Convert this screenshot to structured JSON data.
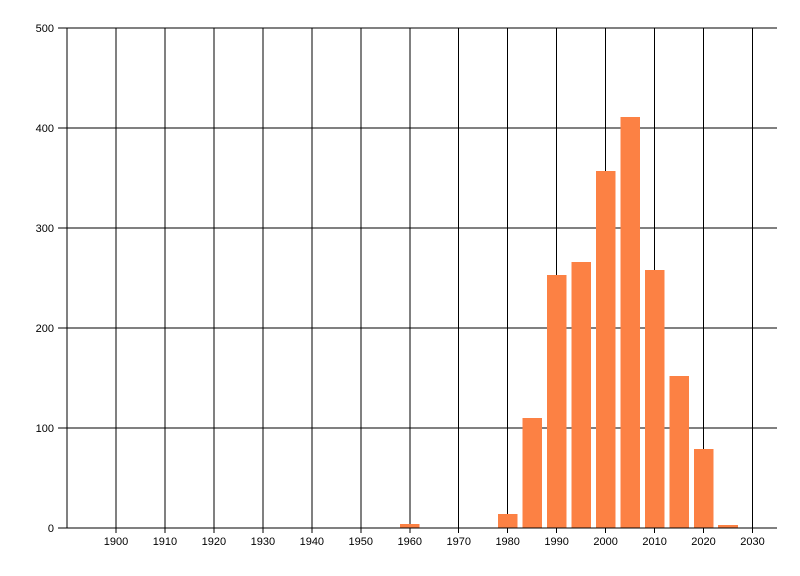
{
  "chart_data": {
    "type": "bar",
    "title": "",
    "xlabel": "",
    "ylabel": "",
    "x": [
      1960,
      1980,
      1985,
      1990,
      1995,
      2000,
      2005,
      2010,
      2015,
      2020,
      2025
    ],
    "values": [
      4,
      14,
      110,
      253,
      266,
      357,
      411,
      258,
      152,
      79,
      3
    ],
    "bar_width_years": 4,
    "xlim": [
      1890,
      2035
    ],
    "ylim": [
      0,
      500
    ],
    "x_ticks": [
      1900,
      1910,
      1920,
      1930,
      1940,
      1950,
      1960,
      1970,
      1980,
      1990,
      2000,
      2010,
      2020,
      2030
    ],
    "y_ticks": [
      0,
      100,
      200,
      300,
      400,
      500
    ],
    "grid": true,
    "legend": false,
    "colors": {
      "bar": "#fc8144",
      "grid": "#000000",
      "axis": "#000000",
      "tick_label": "#000000",
      "background": "#ffffff"
    }
  }
}
